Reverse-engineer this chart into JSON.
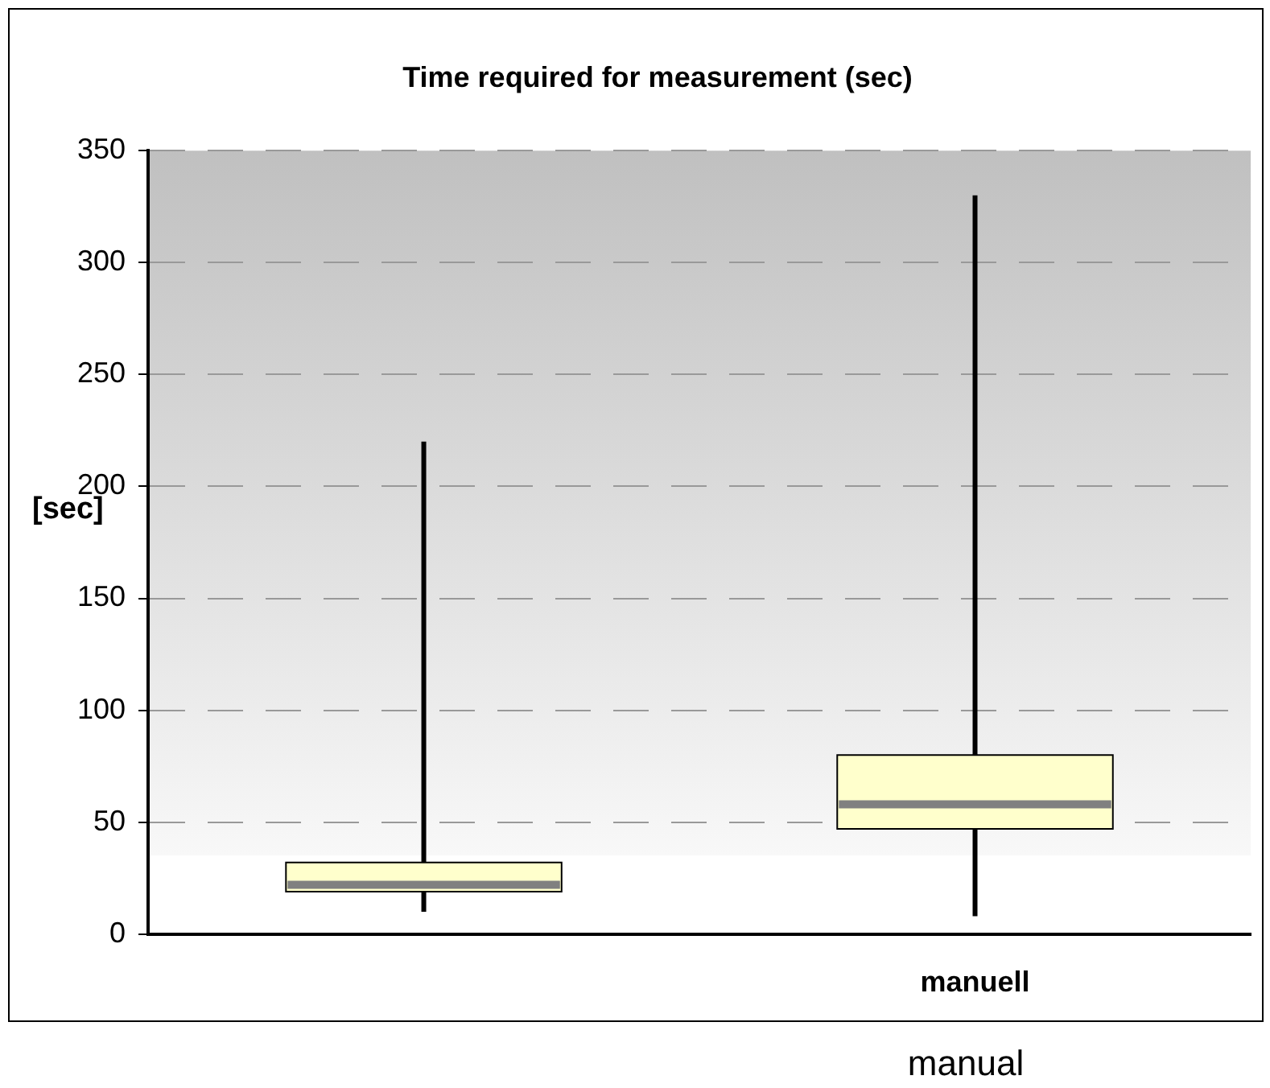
{
  "chart_data": {
    "type": "box",
    "title": "Time required for measurement (sec)",
    "ylabel": "[sec]",
    "categories": [
      null,
      "manuell"
    ],
    "boxes": [
      {
        "low": 10,
        "q1": 19,
        "median": 22,
        "q3": 32,
        "high": 220
      },
      {
        "low": 8,
        "q1": 47,
        "median": 58,
        "q3": 80,
        "high": 330
      }
    ],
    "color": "#ffffcc",
    "ylim": [
      0,
      350
    ],
    "yticks": [
      0,
      50,
      100,
      150,
      200,
      250,
      300,
      350
    ],
    "grid": "y",
    "legend": false,
    "annotations": [
      "manual"
    ]
  }
}
